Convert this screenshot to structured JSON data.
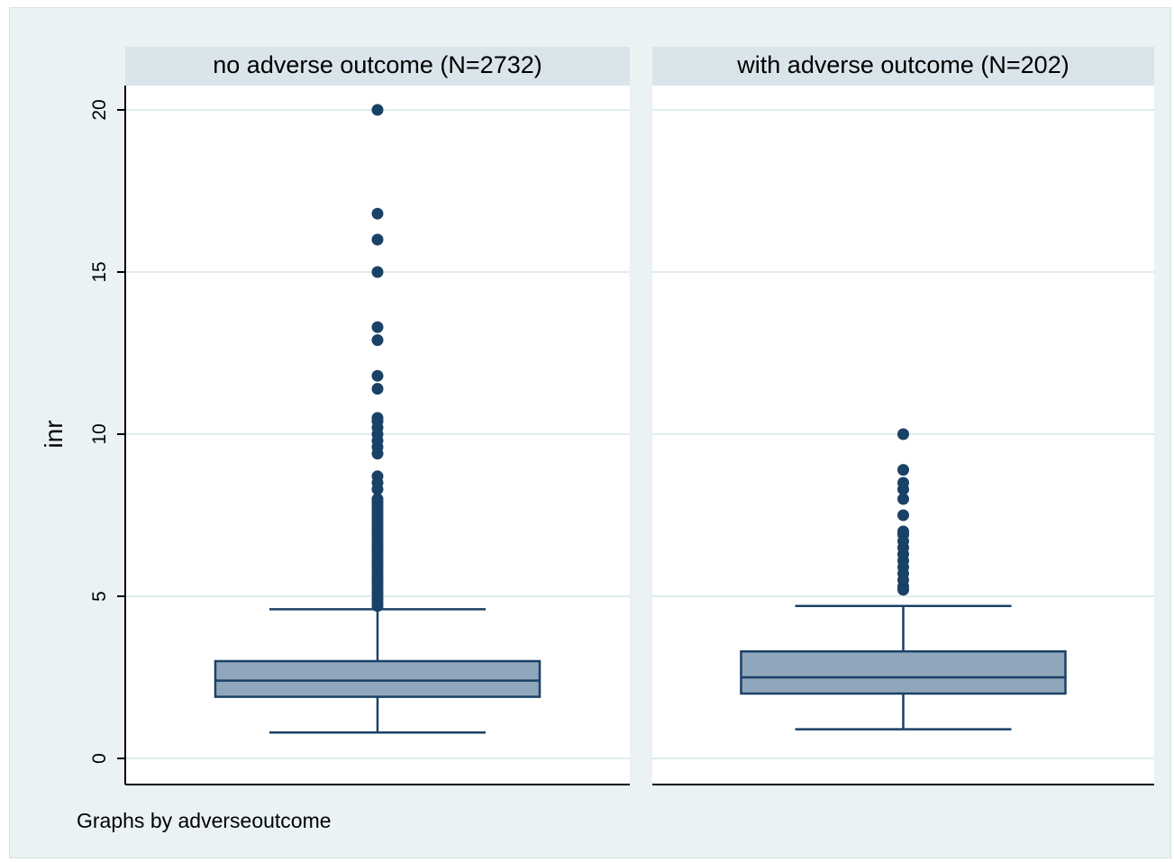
{
  "chart_data": {
    "type": "box",
    "ylabel": "inr",
    "ylim": [
      0,
      20
    ],
    "yticks": [
      0,
      5,
      10,
      15,
      20
    ],
    "ytick_labels": [
      "0",
      "5",
      "10",
      "15",
      "20"
    ],
    "note": "Graphs by adverseoutcome",
    "colors": {
      "background": "#eaf2f3",
      "panel": "#ffffff",
      "strip": "#d9e5ea",
      "box_fill": "#90a7bb",
      "line": "#1a4166",
      "marker": "#1a4166",
      "grid": "#e1ecee"
    },
    "panels": [
      {
        "title": "no adverse outcome (N=2732)",
        "box": {
          "whisker_low": 0.8,
          "q1": 1.9,
          "median": 2.4,
          "q3": 3.0,
          "whisker_high": 4.6
        },
        "outliers": [
          4.7,
          4.8,
          4.9,
          5.0,
          5.1,
          5.2,
          5.3,
          5.4,
          5.5,
          5.6,
          5.7,
          5.8,
          5.9,
          6.0,
          6.1,
          6.2,
          6.3,
          6.4,
          6.5,
          6.6,
          6.7,
          6.8,
          6.9,
          7.0,
          7.1,
          7.2,
          7.3,
          7.4,
          7.5,
          7.6,
          7.7,
          7.8,
          7.9,
          8.0,
          8.3,
          8.5,
          8.7,
          9.4,
          9.6,
          9.8,
          10.0,
          10.2,
          10.4,
          10.5,
          11.4,
          11.8,
          12.9,
          13.3,
          15.0,
          16.0,
          16.8,
          20.0
        ]
      },
      {
        "title": "with adverse outcome (N=202)",
        "box": {
          "whisker_low": 0.9,
          "q1": 2.0,
          "median": 2.5,
          "q3": 3.3,
          "whisker_high": 4.7
        },
        "outliers": [
          5.2,
          5.3,
          5.5,
          5.7,
          5.9,
          6.1,
          6.3,
          6.5,
          6.7,
          6.9,
          7.0,
          7.5,
          8.0,
          8.3,
          8.5,
          8.9,
          10.0
        ]
      }
    ]
  }
}
